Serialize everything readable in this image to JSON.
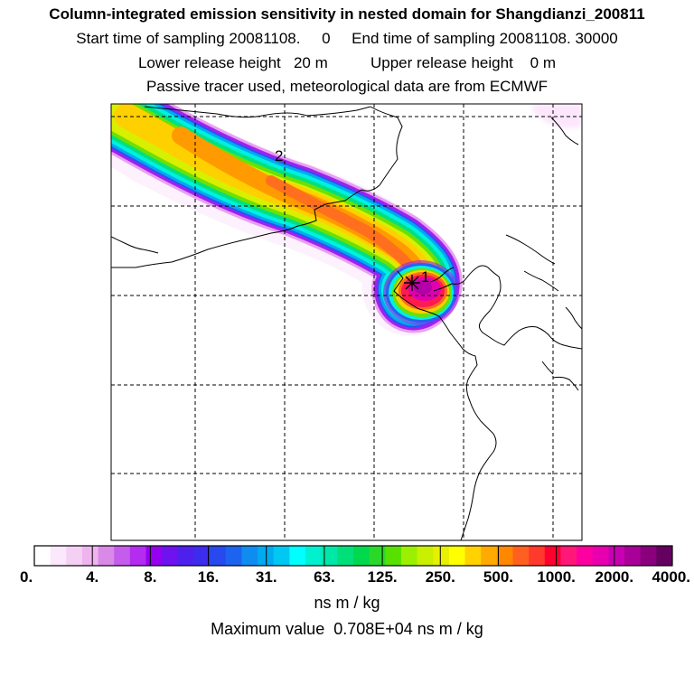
{
  "header": {
    "title": "Column-integrated emission sensitivity in nested domain for Shangdianzi_200811",
    "line2": "Start time of sampling 20081108.     0     End time of sampling 20081108. 30000",
    "line3": "Lower release height   20 m          Upper release height    0 m",
    "line4": "Passive tracer used, meteorological data are from ECMWF"
  },
  "map": {
    "point_labels": [
      "1",
      "2"
    ],
    "release_marker": "asterisk-icon"
  },
  "colorbar": {
    "tick_labels": [
      "0.",
      "4.",
      "8.",
      "16.",
      "31.",
      "63.",
      "125.",
      "250.",
      "500.",
      "1000.",
      "2000.",
      "4000."
    ],
    "colors": [
      "#ffffff",
      "#fbe8fb",
      "#f5d0f5",
      "#eeb4ee",
      "#d88ae6",
      "#c45cec",
      "#b42cf0",
      "#9600f0",
      "#6e12f0",
      "#4e20ee",
      "#3c2cee",
      "#2848f0",
      "#1c64f0",
      "#0f8cf0",
      "#00aaf0",
      "#00c8f2",
      "#00ffff",
      "#00f0d0",
      "#00e8a8",
      "#00e07a",
      "#00d84e",
      "#2ad82a",
      "#58e000",
      "#9af000",
      "#c8f000",
      "#e6f000",
      "#ffff00",
      "#ffd200",
      "#ffaa00",
      "#ff8800",
      "#ff6020",
      "#ff3a2c",
      "#ff0030",
      "#ff1878",
      "#ff00a0",
      "#e800b0",
      "#c800b4",
      "#a80098",
      "#8a007c",
      "#640060"
    ],
    "units": "ns m / kg"
  },
  "footer": {
    "max_value": "Maximum value  0.708E+04 ns m / kg"
  }
}
